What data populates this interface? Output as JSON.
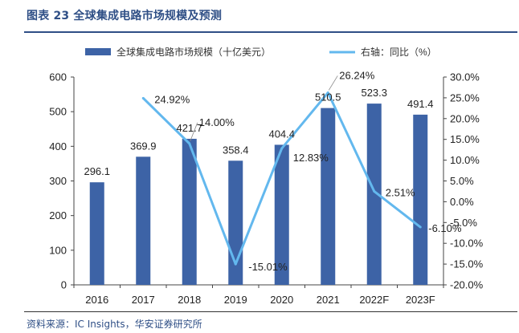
{
  "figure": {
    "title": "图表 23 全球集成电路市场规模及预测",
    "source": "资料来源：IC Insights，华安证券研究所"
  },
  "colors": {
    "bar": "#3d63a6",
    "line": "#63b8ee",
    "title": "#2f4f86"
  },
  "chart_data": {
    "type": "bar+line",
    "categories": [
      "2016",
      "2017",
      "2018",
      "2019",
      "2020",
      "2021",
      "2022F",
      "2023F"
    ],
    "series": [
      {
        "name": "全球集成电路市场规模（十亿美元）",
        "type": "bar",
        "axis": "left",
        "values": [
          296.1,
          369.9,
          421.7,
          358.4,
          404.4,
          510.5,
          523.3,
          491.4
        ],
        "labels": [
          "296.1",
          "369.9",
          "421.7",
          "358.4",
          "404.4",
          "510.5",
          "523.3",
          "491.4"
        ]
      },
      {
        "name": "右轴：同比（%）",
        "type": "line",
        "axis": "right",
        "values": [
          null,
          24.92,
          14.0,
          -15.01,
          12.83,
          26.24,
          2.51,
          -6.1
        ],
        "labels": [
          "",
          "24.92%",
          "14.00%",
          "-15.01%",
          "12.83%",
          "26.24%",
          "2.51%",
          "-6.10%"
        ]
      }
    ],
    "y_left": {
      "lim": [
        0,
        600
      ],
      "ticks": [
        "0",
        "100",
        "200",
        "300",
        "400",
        "500",
        "600"
      ]
    },
    "y_right": {
      "lim": [
        -20,
        30
      ],
      "ticks": [
        "-20.0%",
        "-15.0%",
        "-10.0%",
        "-5.0%",
        "0.0%",
        "5.0%",
        "10.0%",
        "15.0%",
        "20.0%",
        "25.0%",
        "30.0%"
      ]
    },
    "legend_position": "top",
    "grid": false
  }
}
